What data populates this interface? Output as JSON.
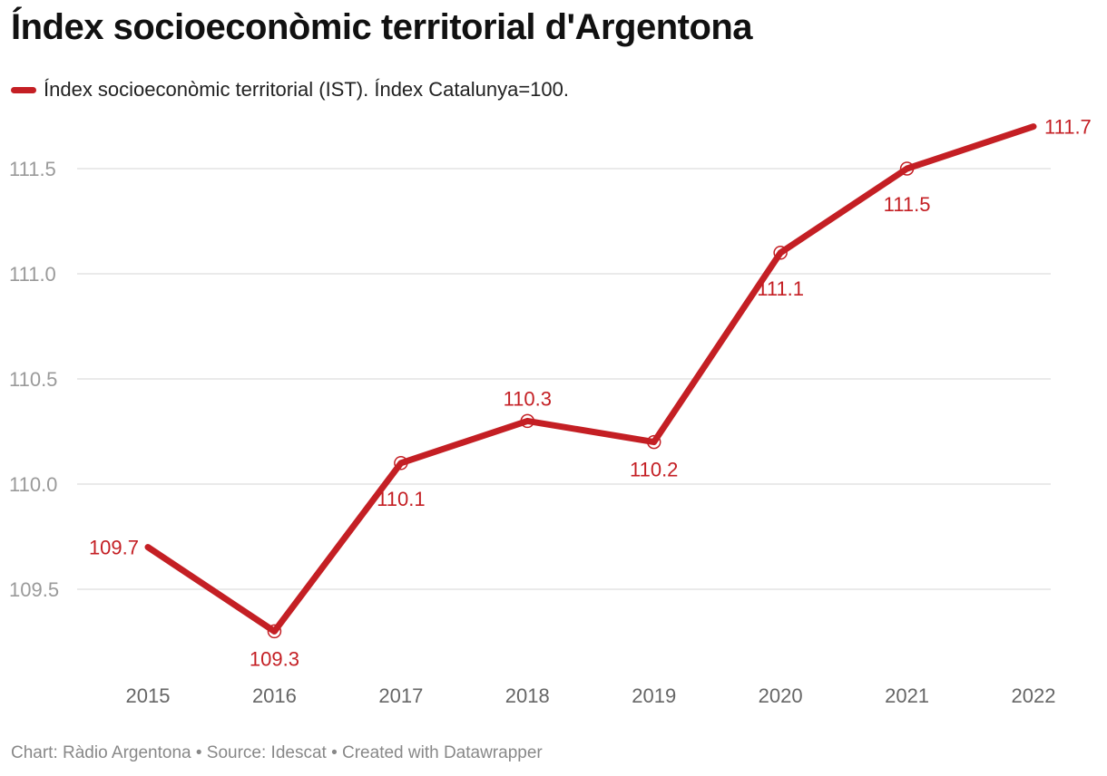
{
  "title": "Índex socioeconòmic territorial d'Argentona",
  "footer": "Chart: Ràdio Argentona • Source: Idescat • Created with Datawrapper",
  "colors": {
    "line": "#c41f24",
    "grid": "#dddddd"
  },
  "chart_data": {
    "type": "line",
    "title": "Índex socioeconòmic territorial d'Argentona",
    "xlabel": "",
    "ylabel": "",
    "categories": [
      "2015",
      "2016",
      "2017",
      "2018",
      "2019",
      "2020",
      "2021",
      "2022"
    ],
    "series": [
      {
        "name": "Índex socioeconòmic territorial (IST). Índex Catalunya=100.",
        "values": [
          109.7,
          109.3,
          110.1,
          110.3,
          110.2,
          111.1,
          111.5,
          111.7
        ],
        "labels": [
          "109.7",
          "109.3",
          "110.1",
          "110.3",
          "110.2",
          "111.1",
          "111.5",
          "111.7"
        ]
      }
    ],
    "yticks": [
      "109.5",
      "110.0",
      "110.5",
      "111.0",
      "111.5"
    ],
    "ylim": [
      109.5,
      111.5
    ],
    "grid": true,
    "legend": "top-left"
  }
}
